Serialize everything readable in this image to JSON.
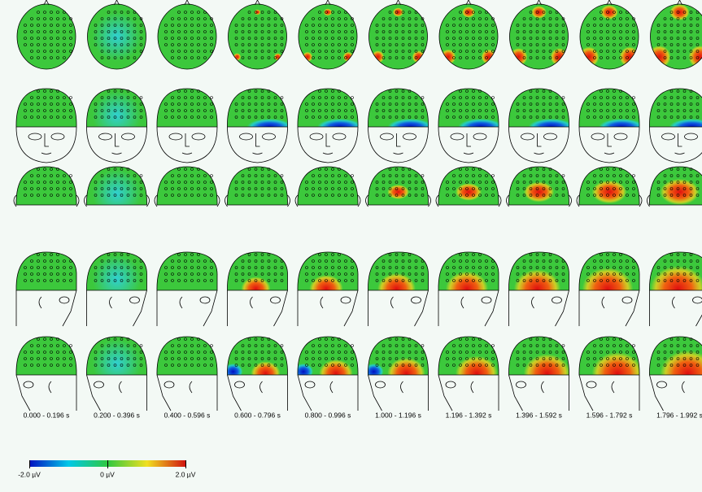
{
  "time_windows": [
    "0.000 - 0.196 s",
    "0.200 - 0.396 s",
    "0.400 - 0.596 s",
    "0.600 - 0.796 s",
    "0.800 - 0.996 s",
    "1.000 - 1.196 s",
    "1.196 - 1.392 s",
    "1.396 - 1.592 s",
    "1.596 - 1.792 s",
    "1.796 - 1.992 s"
  ],
  "colorbar": {
    "labels": [
      "-2.0 µV",
      "0 µV",
      "2.0 µV"
    ]
  }
}
